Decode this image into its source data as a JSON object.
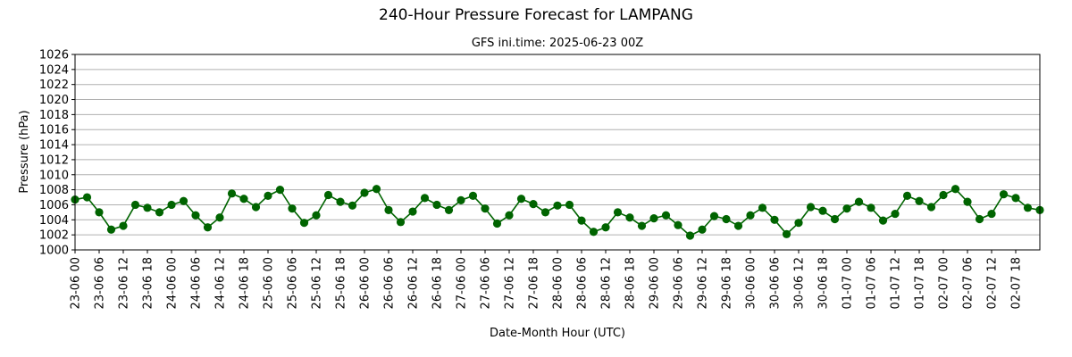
{
  "chart_data": {
    "type": "line",
    "title": "240-Hour Pressure Forecast for LAMPANG",
    "subtitle": "GFS ini.time: 2025-06-23 00Z",
    "xlabel": "Date-Month Hour (UTC)",
    "ylabel": "Pressure (hPa)",
    "ylim": [
      1000,
      1026
    ],
    "yticks": [
      1000,
      1002,
      1004,
      1006,
      1008,
      1010,
      1012,
      1014,
      1016,
      1018,
      1020,
      1022,
      1024,
      1026
    ],
    "grid": "horizontal",
    "color": "#006400",
    "x": [
      "23-06 00",
      "23-06 03",
      "23-06 06",
      "23-06 09",
      "23-06 12",
      "23-06 15",
      "23-06 18",
      "23-06 21",
      "24-06 00",
      "24-06 03",
      "24-06 06",
      "24-06 09",
      "24-06 12",
      "24-06 15",
      "24-06 18",
      "24-06 21",
      "25-06 00",
      "25-06 03",
      "25-06 06",
      "25-06 09",
      "25-06 12",
      "25-06 15",
      "25-06 18",
      "25-06 21",
      "26-06 00",
      "26-06 03",
      "26-06 06",
      "26-06 09",
      "26-06 12",
      "26-06 15",
      "26-06 18",
      "26-06 21",
      "27-06 00",
      "27-06 03",
      "27-06 06",
      "27-06 09",
      "27-06 12",
      "27-06 15",
      "27-06 18",
      "27-06 21",
      "28-06 00",
      "28-06 03",
      "28-06 06",
      "28-06 09",
      "28-06 12",
      "28-06 15",
      "28-06 18",
      "28-06 21",
      "29-06 00",
      "29-06 03",
      "29-06 06",
      "29-06 09",
      "29-06 12",
      "29-06 15",
      "29-06 18",
      "29-06 21",
      "30-06 00",
      "30-06 03",
      "30-06 06",
      "30-06 09",
      "30-06 12",
      "30-06 15",
      "30-06 18",
      "30-06 21",
      "01-07 00",
      "01-07 03",
      "01-07 06",
      "01-07 09",
      "01-07 12",
      "01-07 15",
      "01-07 18",
      "01-07 21",
      "02-07 00",
      "02-07 03",
      "02-07 06",
      "02-07 09",
      "02-07 12",
      "02-07 15",
      "02-07 18",
      "02-07 21",
      "03-07 00"
    ],
    "xtick_labels": [
      "23-06 00",
      "23-06 06",
      "23-06 12",
      "23-06 18",
      "24-06 00",
      "24-06 06",
      "24-06 12",
      "24-06 18",
      "25-06 00",
      "25-06 06",
      "25-06 12",
      "25-06 18",
      "26-06 00",
      "26-06 06",
      "26-06 12",
      "26-06 18",
      "27-06 00",
      "27-06 06",
      "27-06 12",
      "27-06 18",
      "28-06 00",
      "28-06 06",
      "28-06 12",
      "28-06 18",
      "29-06 00",
      "29-06 06",
      "29-06 12",
      "29-06 18",
      "30-06 00",
      "30-06 06",
      "30-06 12",
      "30-06 18",
      "01-07 00",
      "01-07 06",
      "01-07 12",
      "01-07 18",
      "02-07 00",
      "02-07 06",
      "02-07 12",
      "02-07 18"
    ],
    "series": [
      {
        "values": [
          1006.7,
          1007.0,
          1005.0,
          1002.7,
          1003.2,
          1006.0,
          1005.6,
          1005.0,
          1006.0,
          1006.5,
          1004.6,
          1003.0,
          1004.3,
          1007.5,
          1006.8,
          1005.7,
          1007.2,
          1008.0,
          1005.5,
          1003.6,
          1004.6,
          1007.3,
          1006.4,
          1005.9,
          1007.6,
          1008.1,
          1005.3,
          1003.7,
          1005.1,
          1006.9,
          1006.0,
          1005.3,
          1006.6,
          1007.2,
          1005.5,
          1003.5,
          1004.6,
          1006.8,
          1006.1,
          1005.0,
          1005.9,
          1006.0,
          1003.9,
          1002.4,
          1003.0,
          1005.0,
          1004.3,
          1003.2,
          1004.2,
          1004.6,
          1003.3,
          1001.9,
          1002.7,
          1004.5,
          1004.1,
          1003.2,
          1004.6,
          1005.6,
          1004.0,
          1002.1,
          1003.6,
          1005.7,
          1005.2,
          1004.1,
          1005.5,
          1006.4,
          1005.6,
          1003.9,
          1004.8,
          1007.2,
          1006.5,
          1005.7,
          1007.3,
          1008.1,
          1006.4,
          1004.1,
          1004.8,
          1007.4,
          1006.9,
          1005.6,
          1005.3
        ]
      }
    ]
  }
}
